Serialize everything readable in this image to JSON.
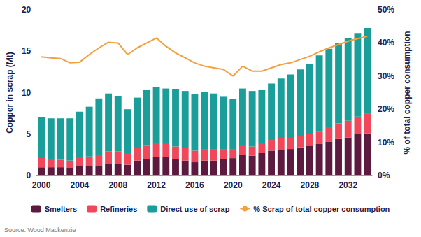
{
  "chart_data": {
    "type": "bar",
    "stacked": true,
    "grid": false,
    "legend": "bottom",
    "ylabel": "Copper in scrap (Mt)",
    "y2label": "% of total copper consumption",
    "source": "Source: Wood Mackenzie",
    "categories": [
      "2000",
      null,
      null,
      null,
      "2004",
      null,
      null,
      null,
      "2008",
      null,
      null,
      null,
      "2012",
      null,
      null,
      null,
      "2016",
      null,
      null,
      null,
      "2020",
      null,
      null,
      null,
      "2024",
      null,
      null,
      null,
      "2028",
      null,
      null,
      null,
      "2032",
      null,
      null
    ],
    "ylim": [
      0,
      20
    ],
    "yticks": [
      0,
      5,
      10,
      15,
      20
    ],
    "y2lim": [
      0,
      50
    ],
    "y2ticks": [
      {
        "value": 0,
        "label": "0%"
      },
      {
        "value": 10,
        "label": "10%"
      },
      {
        "value": 20,
        "label": "20%"
      },
      {
        "value": 30,
        "label": "30%"
      },
      {
        "value": 40,
        "label": "40%"
      },
      {
        "value": 50,
        "label": "50%"
      }
    ],
    "series": [
      {
        "name": "Smelters",
        "type": "bar",
        "color": "#5b1a3e",
        "values": [
          1.0,
          1.0,
          1.0,
          0.9,
          1.1,
          1.1,
          1.1,
          1.4,
          1.4,
          1.3,
          1.8,
          2.0,
          2.2,
          2.2,
          2.0,
          1.8,
          1.6,
          1.8,
          1.8,
          2.0,
          2.1,
          2.5,
          2.4,
          2.7,
          3.0,
          3.1,
          3.2,
          3.4,
          3.6,
          3.8,
          4.1,
          4.4,
          4.6,
          5.0,
          5.1
        ]
      },
      {
        "name": "Refineries",
        "type": "bar",
        "color": "#f0485a",
        "values": [
          1.1,
          1.0,
          0.9,
          0.9,
          1.1,
          1.2,
          1.4,
          1.5,
          1.5,
          1.4,
          1.5,
          1.6,
          1.7,
          1.6,
          1.5,
          1.5,
          1.4,
          1.4,
          1.4,
          1.2,
          1.1,
          1.2,
          1.1,
          1.2,
          1.3,
          1.4,
          1.3,
          1.4,
          1.4,
          1.5,
          1.8,
          1.9,
          2.0,
          2.1,
          2.4
        ]
      },
      {
        "name": "Direct use of scrap",
        "type": "bar",
        "color": "#1a9e9a",
        "values": [
          4.9,
          4.9,
          5.0,
          5.1,
          5.5,
          6.0,
          6.8,
          7.0,
          6.7,
          5.3,
          6.1,
          6.7,
          6.8,
          6.7,
          6.9,
          6.9,
          6.8,
          6.9,
          6.7,
          6.3,
          6.0,
          6.8,
          6.7,
          6.4,
          6.8,
          7.2,
          7.7,
          8.0,
          8.5,
          9.2,
          9.4,
          9.7,
          10.0,
          10.1,
          10.3
        ]
      },
      {
        "name": "% Scrap of total copper consumption",
        "type": "line",
        "axis": "y2",
        "color": "#f5a040",
        "values": [
          35.8,
          35.5,
          35.3,
          34.0,
          34.2,
          36.5,
          38.5,
          40.2,
          40.0,
          36.5,
          38.5,
          40.0,
          41.5,
          39.0,
          37.0,
          35.5,
          34.0,
          33.0,
          32.5,
          32.0,
          30.0,
          33.0,
          31.5,
          31.5,
          32.5,
          33.5,
          34.0,
          35.0,
          36.0,
          37.3,
          38.5,
          39.5,
          40.5,
          41.3,
          42.0
        ]
      }
    ]
  }
}
